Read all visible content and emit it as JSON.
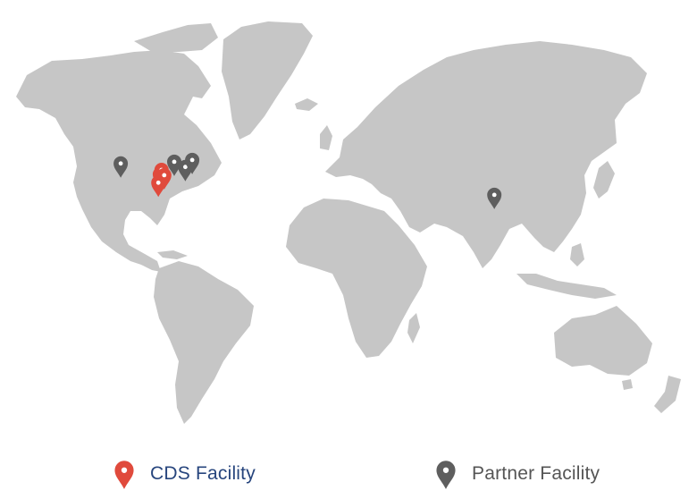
{
  "colors": {
    "land": "#c6c6c6",
    "cds_pin": "#e04a3c",
    "partner_pin": "#5e5e5e",
    "cds_label": "#27457d",
    "partner_label": "#555555"
  },
  "legend": {
    "cds_label": "CDS Facility",
    "partner_label": "Partner Facility",
    "cds_icon": "map-pin-icon",
    "partner_icon": "map-pin-icon"
  },
  "markers": {
    "cds": [
      {
        "lon": -97.7,
        "lat": 30.3
      },
      {
        "lon": -96.8,
        "lat": 32.8
      },
      {
        "lon": -95.4,
        "lat": 29.8
      },
      {
        "lon": -98.5,
        "lat": 25.5
      }
    ],
    "partner": [
      {
        "lon": -118.2,
        "lat": 36.5
      },
      {
        "lon": -90.2,
        "lat": 37.5
      },
      {
        "lon": -84.4,
        "lat": 34.5
      },
      {
        "lon": -80.8,
        "lat": 38.5
      },
      {
        "lon": 77.2,
        "lat": 18.5
      }
    ]
  }
}
